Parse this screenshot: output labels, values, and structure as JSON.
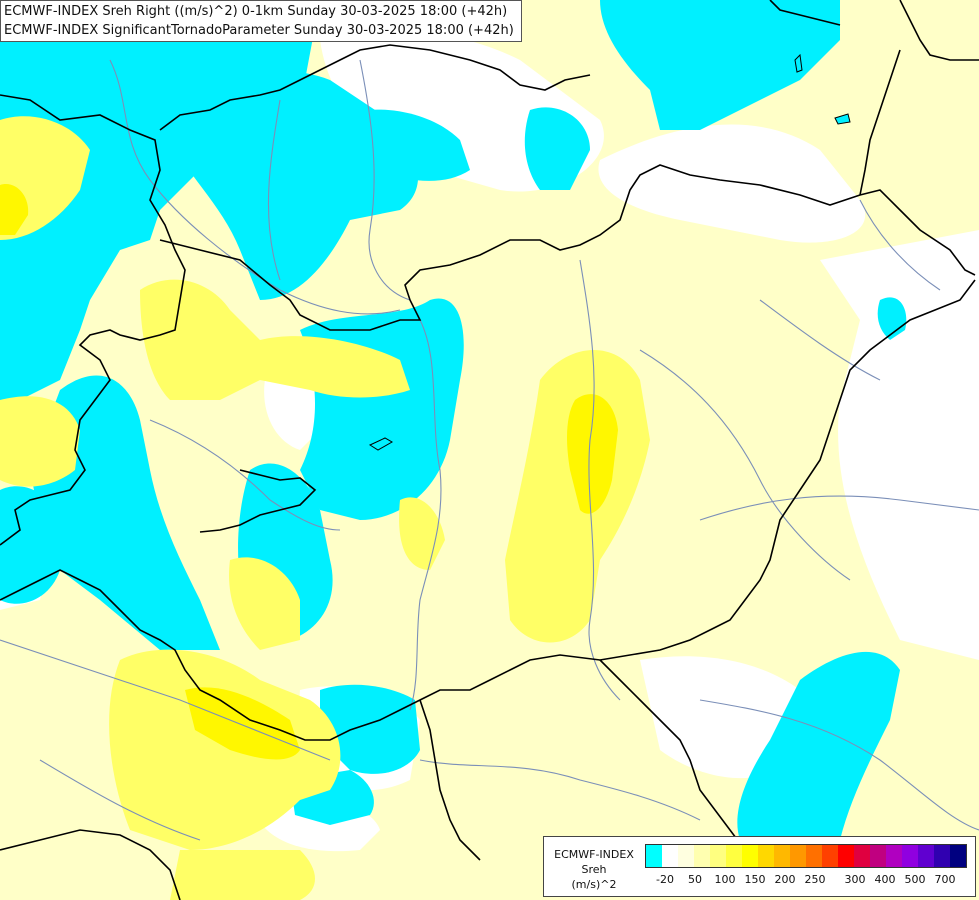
{
  "title": {
    "line1": "ECMWF-INDEX Sreh Right ((m/s)^2) 0-1km Sunday 30-03-2025 18:00 (+42h)",
    "line2": "ECMWF-INDEX SignificantTornadoParameter Sunday 30-03-2025 18:00 (+42h)"
  },
  "legend": {
    "line1": "ECMWF-INDEX",
    "line2": "Sreh",
    "line3": "(m/s)^2",
    "colors": [
      "#00ffff",
      "#ffffff",
      "#ffffe0",
      "#ffffb0",
      "#ffff80",
      "#ffff40",
      "#ffff00",
      "#ffd800",
      "#ffb800",
      "#ff9800",
      "#ff7000",
      "#ff4000",
      "#ff0000",
      "#e00040",
      "#c00080",
      "#b000c0",
      "#9000e0",
      "#6000d0",
      "#3000b0",
      "#000080"
    ],
    "ticks": [
      {
        "label": "-20",
        "pos": 0.0625
      },
      {
        "label": "50",
        "pos": 0.1563
      },
      {
        "label": "100",
        "pos": 0.25
      },
      {
        "label": "150",
        "pos": 0.3438
      },
      {
        "label": "200",
        "pos": 0.4375
      },
      {
        "label": "250",
        "pos": 0.5313
      },
      {
        "label": "300",
        "pos": 0.6563
      },
      {
        "label": "400",
        "pos": 0.75
      },
      {
        "label": "500",
        "pos": 0.8438
      },
      {
        "label": "700",
        "pos": 0.9375
      }
    ]
  },
  "fill_colors": {
    "background": "#ffffc8",
    "cyan": "#00f0ff",
    "white": "#ffffff",
    "light_yellow": "#fdfda0",
    "yellow": "#ffff66",
    "strong_yellow": "#fff700",
    "border": "#000000",
    "river": "#7b8fb8"
  }
}
